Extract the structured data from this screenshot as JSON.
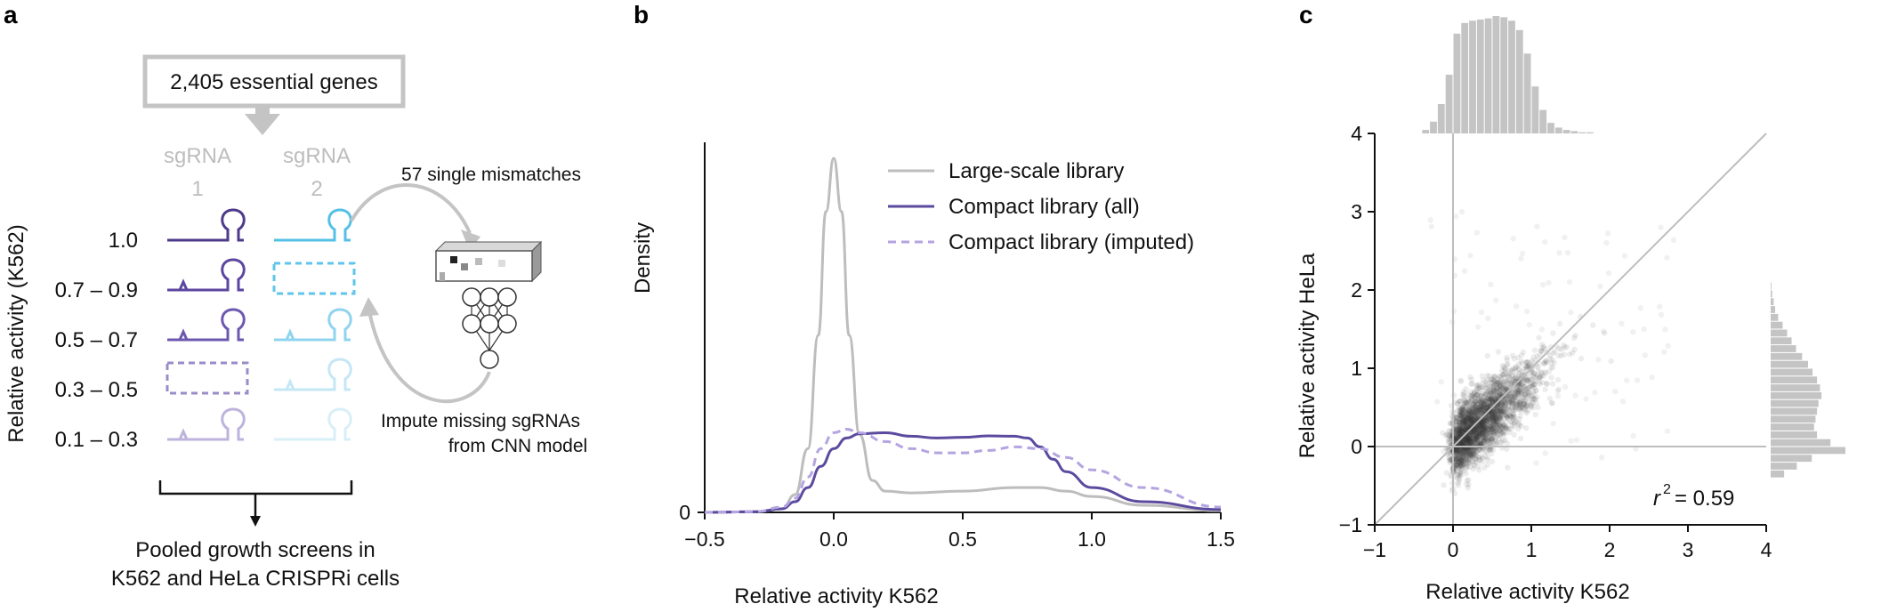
{
  "panels": {
    "a": {
      "letter": "a",
      "top_box": "2,405 essential genes",
      "sgrna1_label": [
        "sgRNA",
        "1"
      ],
      "sgrna2_label": [
        "sgRNA",
        "2"
      ],
      "y_title": "Relative activity (K562)",
      "rows": [
        "1.0",
        "0.7 – 0.9",
        "0.5 – 0.7",
        "0.3 – 0.5",
        "0.1 – 0.3"
      ],
      "mismatch_label": "57 single mismatches",
      "impute_label": [
        "Impute missing sgRNAs",
        "from CNN model"
      ],
      "bottom_label": [
        "Pooled growth screens in",
        "K562 and HeLa CRISPRi cells"
      ],
      "colors": {
        "sg1": [
          "#4e3a8a",
          "#5c46a0",
          "#6d58b0",
          "#9a8cc8",
          "#bdb3dc"
        ],
        "sg2": [
          "#55c0e6",
          "#5fc6ea",
          "#8fd4ef",
          "#c4e7f5",
          "#d9eff8"
        ]
      }
    },
    "b": {
      "letter": "b"
    },
    "c": {
      "letter": "c"
    }
  },
  "chart_data": [
    {
      "type": "line",
      "panel": "b",
      "xlabel": "Relative activity K562",
      "ylabel": "Density",
      "xlim": [
        -0.5,
        1.5
      ],
      "xticks": [
        "−0.5",
        "0.0",
        "0.5",
        "1.0",
        "1.5"
      ],
      "yticks": [
        "0"
      ],
      "legend_position": "top-right",
      "series": [
        {
          "name": "Large-scale library",
          "color": "#bdbdbd",
          "style": "solid",
          "x": [
            -0.5,
            -0.3,
            -0.2,
            -0.15,
            -0.1,
            -0.06,
            -0.03,
            0.0,
            0.03,
            0.06,
            0.1,
            0.15,
            0.2,
            0.3,
            0.5,
            0.7,
            0.8,
            0.9,
            1.0,
            1.2,
            1.5
          ],
          "y": [
            0.0,
            0.002,
            0.01,
            0.05,
            0.18,
            0.5,
            0.85,
            1.0,
            0.85,
            0.5,
            0.22,
            0.09,
            0.06,
            0.055,
            0.06,
            0.07,
            0.07,
            0.06,
            0.045,
            0.02,
            0.005
          ]
        },
        {
          "name": "Compact library (all)",
          "color": "#5b4a9e",
          "style": "solid",
          "x": [
            -0.5,
            -0.3,
            -0.2,
            -0.15,
            -0.1,
            -0.05,
            0.0,
            0.05,
            0.1,
            0.2,
            0.3,
            0.4,
            0.5,
            0.6,
            0.7,
            0.75,
            0.8,
            0.85,
            0.9,
            1.0,
            1.2,
            1.5
          ],
          "y": [
            0.0,
            0.002,
            0.01,
            0.03,
            0.07,
            0.13,
            0.18,
            0.21,
            0.222,
            0.225,
            0.215,
            0.21,
            0.212,
            0.216,
            0.215,
            0.21,
            0.185,
            0.15,
            0.115,
            0.07,
            0.03,
            0.008
          ]
        },
        {
          "name": "Compact library (imputed)",
          "color": "#b4a4e0",
          "style": "dashed",
          "x": [
            -0.5,
            -0.3,
            -0.2,
            -0.15,
            -0.1,
            -0.05,
            0.0,
            0.05,
            0.1,
            0.2,
            0.3,
            0.4,
            0.5,
            0.6,
            0.7,
            0.8,
            0.9,
            1.0,
            1.2,
            1.5
          ],
          "y": [
            0.0,
            0.002,
            0.015,
            0.04,
            0.1,
            0.18,
            0.225,
            0.235,
            0.225,
            0.2,
            0.18,
            0.168,
            0.168,
            0.175,
            0.185,
            0.18,
            0.155,
            0.12,
            0.07,
            0.015
          ]
        }
      ]
    },
    {
      "type": "scatter",
      "panel": "c",
      "xlabel": "Relative activity K562",
      "ylabel": "Relative activity HeLa",
      "xlim": [
        -1,
        4
      ],
      "ylim": [
        -1,
        4
      ],
      "xticks": [
        "−1",
        "0",
        "1",
        "2",
        "3",
        "4"
      ],
      "yticks": [
        "−1",
        "0",
        "1",
        "2",
        "3",
        "4"
      ],
      "annotation": {
        "r_label": "r",
        "exp": "2",
        "value": "= 0.59"
      },
      "identity_line": true,
      "zero_lines": true,
      "point_color": "#3a3a3a",
      "x_hist": {
        "bins": [
          -0.35,
          -0.25,
          -0.15,
          -0.05,
          0.05,
          0.15,
          0.25,
          0.35,
          0.45,
          0.55,
          0.65,
          0.75,
          0.85,
          0.95,
          1.05,
          1.15,
          1.25,
          1.35,
          1.45,
          1.55,
          1.65,
          1.75
        ],
        "counts": [
          0.03,
          0.1,
          0.25,
          0.5,
          0.85,
          0.94,
          0.96,
          0.97,
          0.98,
          1.0,
          0.99,
          0.96,
          0.88,
          0.68,
          0.4,
          0.2,
          0.09,
          0.05,
          0.03,
          0.02,
          0.01,
          0.01
        ]
      },
      "y_hist": {
        "bins": [
          -0.35,
          -0.25,
          -0.15,
          -0.05,
          0.05,
          0.15,
          0.25,
          0.35,
          0.45,
          0.55,
          0.65,
          0.75,
          0.85,
          0.95,
          1.05,
          1.15,
          1.25,
          1.35,
          1.45,
          1.55,
          1.65,
          1.75,
          1.85,
          1.95,
          2.05
        ],
        "counts": [
          0.18,
          0.35,
          0.55,
          1.0,
          0.8,
          0.62,
          0.58,
          0.6,
          0.62,
          0.64,
          0.68,
          0.66,
          0.62,
          0.56,
          0.5,
          0.42,
          0.34,
          0.28,
          0.22,
          0.16,
          0.1,
          0.06,
          0.04,
          0.02,
          0.01
        ]
      }
    }
  ]
}
